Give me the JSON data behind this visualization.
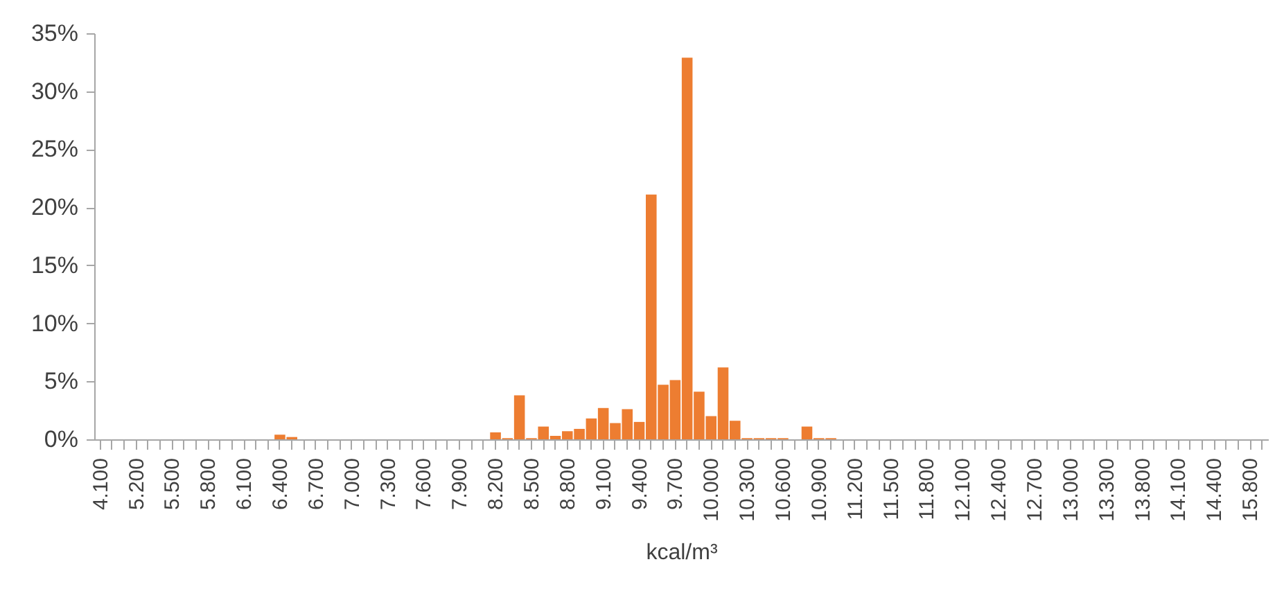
{
  "chart_data": {
    "type": "bar",
    "xlabel": "kcal/m³",
    "color": "#ed7d31",
    "categories": [
      "4.100",
      null,
      null,
      "5.200",
      null,
      null,
      "5.500",
      null,
      null,
      "5.800",
      null,
      null,
      "6.100",
      null,
      null,
      "6.400",
      null,
      null,
      "6.700",
      null,
      null,
      "7.000",
      null,
      null,
      "7.300",
      null,
      null,
      "7.600",
      null,
      null,
      "7.900",
      null,
      null,
      "8.200",
      null,
      null,
      "8.500",
      null,
      null,
      "8.800",
      null,
      null,
      "9.100",
      null,
      null,
      "9.400",
      null,
      null,
      "9.700",
      null,
      null,
      "10.000",
      null,
      null,
      "10.300",
      null,
      null,
      "10.600",
      null,
      null,
      "10.900",
      null,
      null,
      "11.200",
      null,
      null,
      "11.500",
      null,
      null,
      "11.800",
      null,
      null,
      "12.100",
      null,
      null,
      "12.400",
      null,
      null,
      "12.700",
      null,
      null,
      "13.000",
      null,
      null,
      "13.300",
      null,
      null,
      "13.800",
      null,
      null,
      "14.100",
      null,
      null,
      "14.400",
      null,
      null,
      "15.800",
      null
    ],
    "values": [
      0,
      0,
      0,
      0,
      0,
      0,
      0,
      0,
      0,
      0,
      0,
      0,
      0,
      0,
      0,
      0.4,
      0.2,
      0,
      0,
      0,
      0,
      0,
      0,
      0,
      0,
      0,
      0,
      0,
      0,
      0,
      0,
      0,
      0,
      0.6,
      0.1,
      3.8,
      0.1,
      1.1,
      0.3,
      0.7,
      0.9,
      1.8,
      2.7,
      1.4,
      2.6,
      1.5,
      21.1,
      4.7,
      5.1,
      32.9,
      4.1,
      2.0,
      6.2,
      1.6,
      0.1,
      0.1,
      0.1,
      0.1,
      0,
      1.1,
      0.1,
      0.1,
      0,
      0,
      0,
      0,
      0,
      0,
      0,
      0,
      0,
      0,
      0,
      0,
      0,
      0,
      0,
      0,
      0,
      0,
      0,
      0,
      0,
      0,
      0,
      0,
      0,
      0,
      0,
      0,
      0,
      0,
      0,
      0,
      0,
      0,
      0,
      0
    ],
    "ylim": [
      0,
      35
    ],
    "yticks": [
      {
        "value": 0,
        "label": "0%"
      },
      {
        "value": 5,
        "label": "5%"
      },
      {
        "value": 10,
        "label": "10%"
      },
      {
        "value": 15,
        "label": "15%"
      },
      {
        "value": 20,
        "label": "20%"
      },
      {
        "value": 25,
        "label": "25%"
      },
      {
        "value": 30,
        "label": "30%"
      },
      {
        "value": 35,
        "label": "35%"
      }
    ],
    "grid": false
  }
}
